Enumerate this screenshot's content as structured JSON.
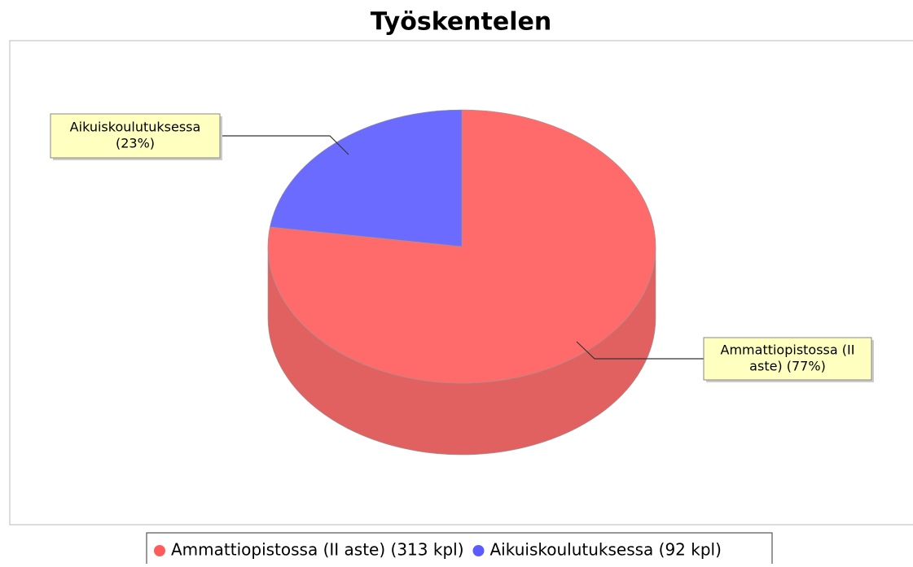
{
  "chart_data": {
    "type": "pie3d",
    "title": "Työskentelen",
    "categories": [
      "Ammattiopistossa (II aste)",
      "Aikuiskoulutuksessa"
    ],
    "values": [
      313,
      92
    ],
    "colors": [
      "#ff5b5b",
      "#5b5bff"
    ],
    "value_labels": [
      [
        "Ammattiopistossa (II",
        "aste) (77%)"
      ],
      [
        "Aikuiskoulutuksessa",
        "(23%)"
      ]
    ],
    "legend_labels": [
      "Ammattiopistossa (II aste) (313 kpl)",
      "Aikuiskoulutuksessa (92 kpl)"
    ]
  }
}
